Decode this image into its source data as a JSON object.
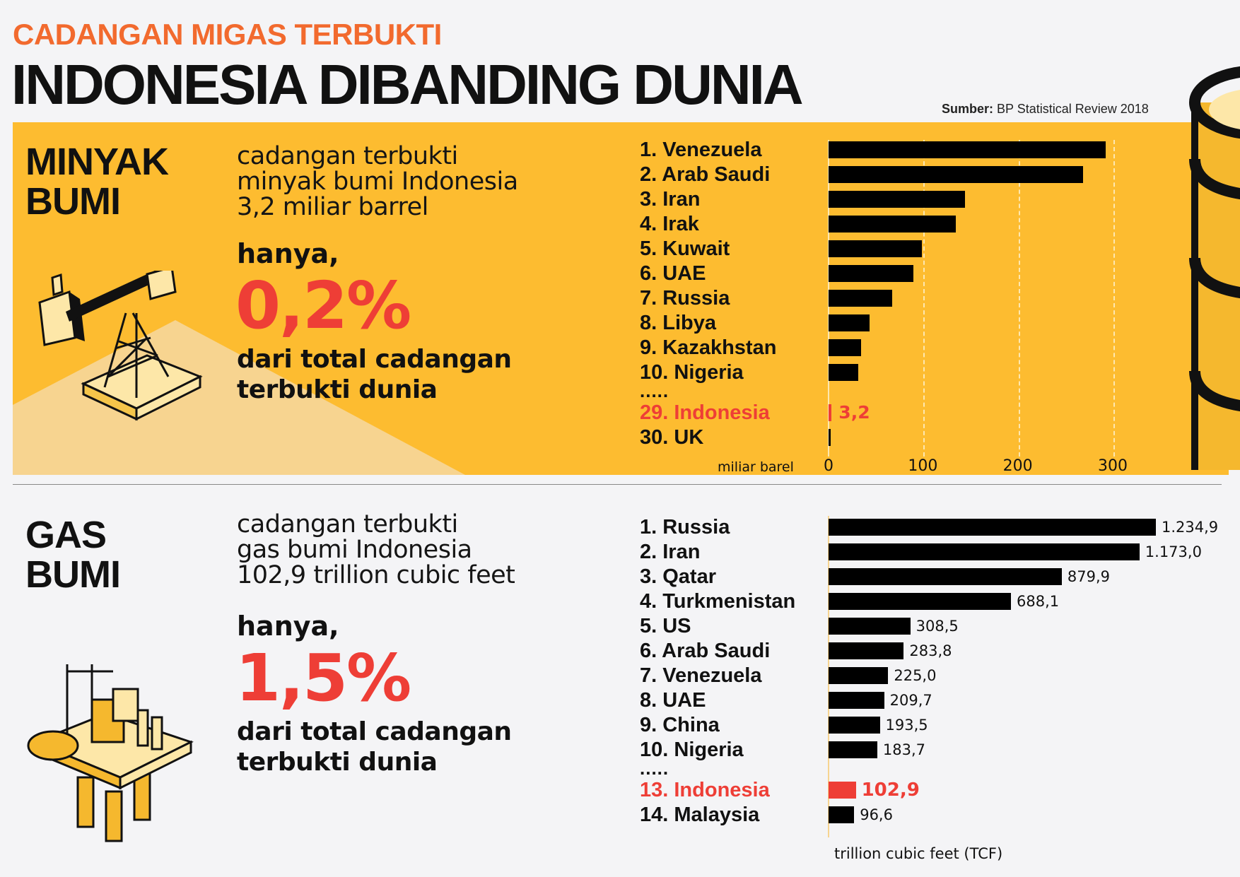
{
  "header": {
    "kicker": "CADANGAN MIGAS TERBUKTI",
    "title": "INDONESIA DIBANDING DUNIA",
    "source_label": "Sumber:",
    "source_text": "BP Statistical Review 2018"
  },
  "oil": {
    "title_line1": "MINYAK",
    "title_line2": "BUMI",
    "desc_line1": "cadangan terbukti",
    "desc_line2": "minyak bumi Indonesia",
    "desc_line3": "3,2 miliar barrel",
    "hanya": "hanya,",
    "percent": "0,2%",
    "dari_line1": "dari total cadangan",
    "dari_line2": "terbukti dunia"
  },
  "gas": {
    "title_line1": "GAS",
    "title_line2": "BUMI",
    "desc_line1": "cadangan terbukti",
    "desc_line2": "gas bumi Indonesia",
    "desc_line3": "102,9 trillion cubic feet",
    "hanya": "hanya,",
    "percent": "1,5%",
    "dari_line1": "dari total cadangan",
    "dari_line2": "terbukti dunia"
  },
  "colors": {
    "accent": "#f26a2e",
    "highlight": "#ee3e36",
    "panel": "#fdbc30",
    "bar": "#000000"
  },
  "chart_data": [
    {
      "type": "bar",
      "title": "Minyak bumi",
      "xlabel": "miliar barel",
      "xlim": [
        0,
        320
      ],
      "ticks": [
        "0",
        "100",
        "200",
        "300"
      ],
      "tick_values": [
        0,
        100,
        200,
        300
      ],
      "grid": true,
      "ellipsis": ".....",
      "categories": [
        "1. Venezuela",
        "2. Arab Saudi",
        "3. Iran",
        "4. Irak",
        "5. Kuwait",
        "6. UAE",
        "7. Russia",
        "8. Libya",
        "9. Kazakhstan",
        "10. Nigeria",
        "29. Indonesia",
        "30. UK"
      ],
      "values": [
        292,
        268,
        144,
        134,
        98,
        89,
        67,
        43,
        34,
        31,
        3.2,
        2.5
      ],
      "labels": [
        "",
        "",
        "",
        "",
        "",
        "",
        "",
        "",
        "",
        "",
        "3,2",
        ""
      ],
      "highlight": "29. Indonesia"
    },
    {
      "type": "bar",
      "title": "Gas bumi",
      "xlabel": "trillion cubic feet (TCF)",
      "ellipsis": ".....",
      "categories": [
        "1. Russia",
        "2. Iran",
        "3. Qatar",
        "4. Turkmenistan",
        "5. US",
        "6. Arab Saudi",
        "7. Venezuela",
        "8. UAE",
        "9. China",
        "10. Nigeria",
        "13. Indonesia",
        "14. Malaysia"
      ],
      "values": [
        1234.9,
        1173.0,
        879.9,
        688.1,
        308.5,
        283.8,
        225.0,
        209.7,
        193.5,
        183.7,
        102.9,
        96.6
      ],
      "labels": [
        "1.234,9",
        "1.173,0",
        "879,9",
        "688,1",
        "308,5",
        "283,8",
        "225,0",
        "209,7",
        "193,5",
        "183,7",
        "102,9",
        "96,6"
      ],
      "highlight": "13. Indonesia"
    }
  ]
}
